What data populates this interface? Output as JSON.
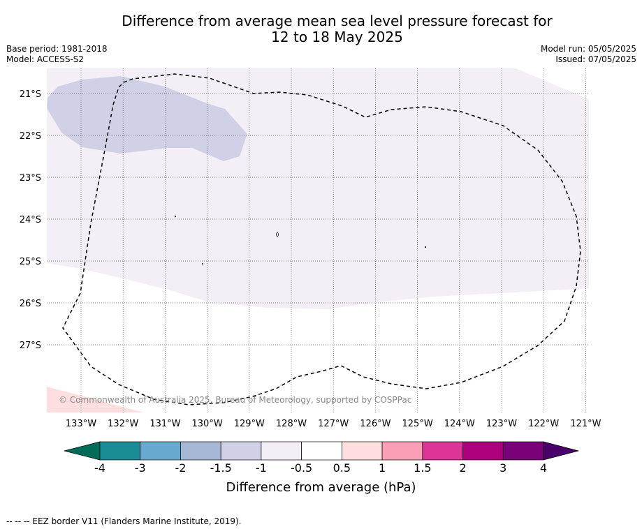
{
  "title_line1": "Difference from average mean sea level pressure forecast for",
  "title_line2": "12 to 18 May 2025",
  "meta": {
    "base_period": "Base period: 1981-2018",
    "model": "Model: ACCESS-S2",
    "model_run": "Model run: 05/05/2025",
    "issued": "Issued: 07/05/2025"
  },
  "map": {
    "lon_labels": [
      "133°W",
      "132°W",
      "131°W",
      "130°W",
      "129°W",
      "128°W",
      "127°W",
      "126°W",
      "125°W",
      "124°W",
      "123°W",
      "122°W",
      "121°W"
    ],
    "lat_labels": [
      "21°S",
      "22°S",
      "23°S",
      "24°S",
      "25°S",
      "26°S",
      "27°S"
    ],
    "copyright": "© Commonwealth of Australia 2025, Bureau of Meteorology, supported by COSPPac"
  },
  "colorbar": {
    "ticks": [
      "-4",
      "-3",
      "-2",
      "-1.5",
      "-1",
      "-0.5",
      "0.5",
      "1",
      "1.5",
      "2",
      "3",
      "4"
    ],
    "colors": [
      "#1a8c96",
      "#67a9cf",
      "#a7b8d6",
      "#d0d1e6",
      "#f4eef6",
      "#ffffff",
      "#fedede",
      "#fa9fb5",
      "#dd3497",
      "#ae017e",
      "#7a0177"
    ],
    "under_color": "#016c59",
    "over_color": "#49006a",
    "label": "Difference from average (hPa)"
  },
  "footer": "--  --  -- EEZ border V11 (Flanders Marine Institute, 2019)."
}
